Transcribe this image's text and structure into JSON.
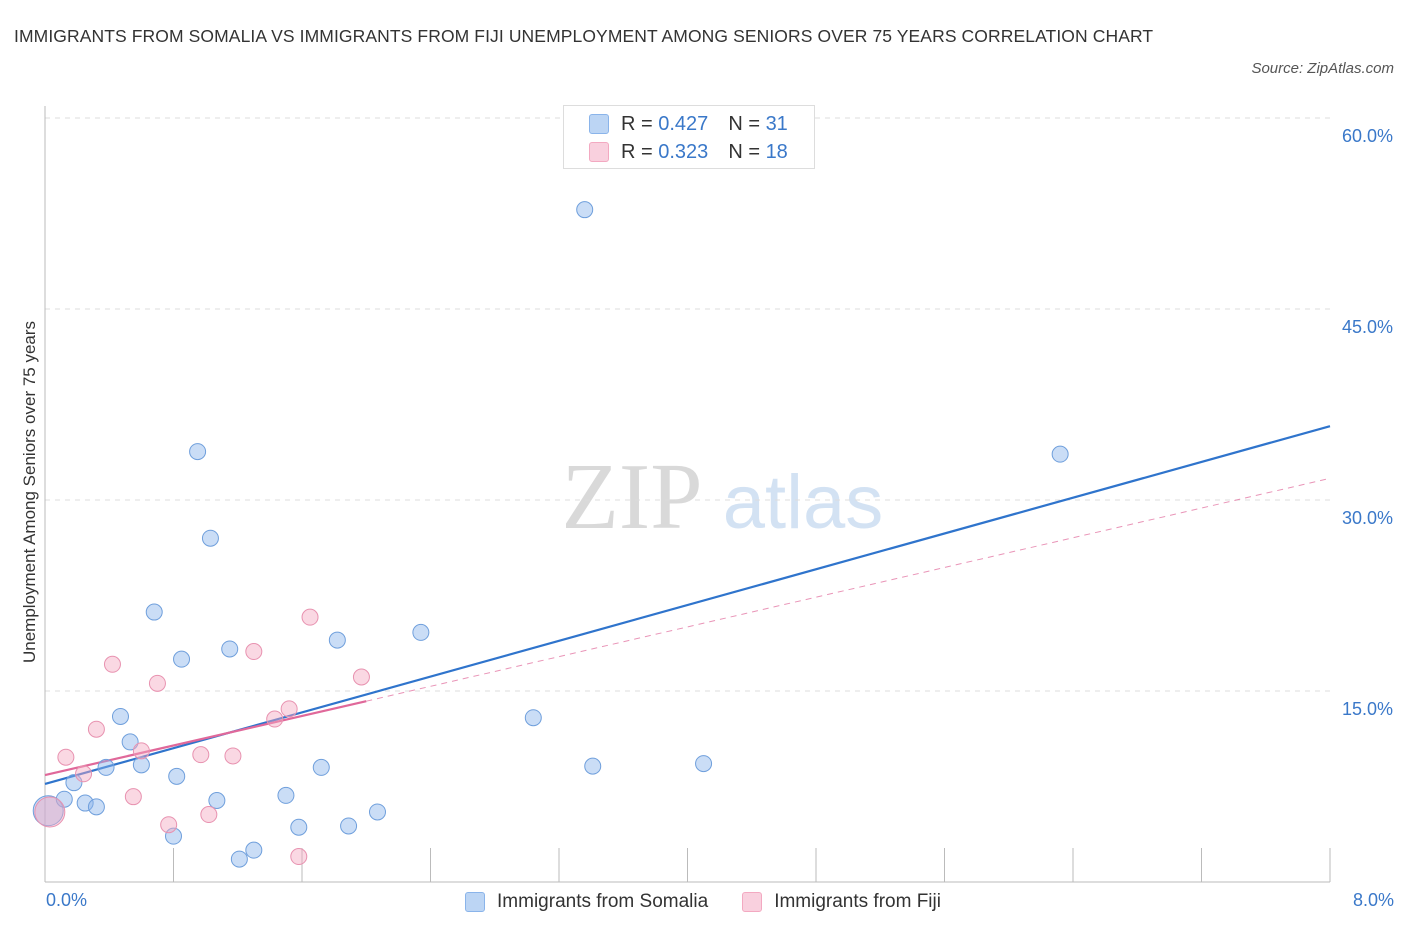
{
  "title": "IMMIGRANTS FROM SOMALIA VS IMMIGRANTS FROM FIJI UNEMPLOYMENT AMONG SENIORS OVER 75 YEARS CORRELATION CHART",
  "source": "Source: ZipAtlas.com",
  "watermark": {
    "zip": "ZIP",
    "atlas": "atlas"
  },
  "colors": {
    "somalia": "#8ab4ea",
    "fiji": "#f3a9c1",
    "somalia_line": "#2f74cc",
    "fiji_line": "#e0689a",
    "axis_label": "#3a78c9"
  },
  "legend_top": [
    {
      "r_label": "R = ",
      "r_value": "0.427",
      "n_label": "N = ",
      "n_value": "31"
    },
    {
      "r_label": "R = ",
      "r_value": "0.323",
      "n_label": "N = ",
      "n_value": "18"
    }
  ],
  "legend_bottom": [
    "Immigrants from Somalia",
    "Immigrants from Fiji"
  ],
  "x_labels": {
    "min": "0.0%",
    "max": "8.0%"
  },
  "chart_data": {
    "type": "scatter",
    "title": "IMMIGRANTS FROM SOMALIA VS IMMIGRANTS FROM FIJI UNEMPLOYMENT AMONG SENIORS OVER 75 YEARS CORRELATION CHART",
    "xlabel": "",
    "ylabel": "Unemployment Among Seniors over 75 years",
    "xlim": [
      0,
      8
    ],
    "ylim": [
      0,
      60
    ],
    "yticks": [
      15,
      30,
      45,
      60
    ],
    "ytick_labels": [
      "15.0%",
      "30.0%",
      "45.0%",
      "60.0%"
    ],
    "grid": "horizontal dashed",
    "legend_placement": "top-center and bottom",
    "series": [
      {
        "name": "Immigrants from Somalia",
        "r": 0.427,
        "n": 31,
        "points": [
          [
            0.02,
            5.6
          ],
          [
            0.12,
            6.5
          ],
          [
            0.18,
            7.8
          ],
          [
            0.25,
            6.2
          ],
          [
            0.32,
            5.9
          ],
          [
            0.38,
            9.0
          ],
          [
            0.47,
            13.0
          ],
          [
            0.53,
            11.0
          ],
          [
            0.6,
            9.2
          ],
          [
            0.68,
            21.2
          ],
          [
            0.8,
            3.6
          ],
          [
            0.82,
            8.3
          ],
          [
            0.85,
            17.5
          ],
          [
            0.95,
            33.8
          ],
          [
            1.03,
            27.0
          ],
          [
            1.07,
            6.4
          ],
          [
            1.15,
            18.3
          ],
          [
            1.21,
            1.8
          ],
          [
            1.3,
            2.5
          ],
          [
            1.5,
            6.8
          ],
          [
            1.58,
            4.3
          ],
          [
            1.72,
            9.0
          ],
          [
            1.82,
            19.0
          ],
          [
            1.89,
            4.4
          ],
          [
            2.07,
            5.5
          ],
          [
            2.34,
            19.6
          ],
          [
            3.04,
            12.9
          ],
          [
            3.36,
            52.8
          ],
          [
            3.41,
            9.1
          ],
          [
            4.1,
            9.3
          ],
          [
            6.32,
            33.6
          ]
        ],
        "trend": {
          "x": [
            0,
            8
          ],
          "y": [
            7.7,
            35.8
          ]
        }
      },
      {
        "name": "Immigrants from Fiji",
        "r": 0.323,
        "n": 18,
        "points": [
          [
            0.03,
            5.5
          ],
          [
            0.13,
            9.8
          ],
          [
            0.24,
            8.5
          ],
          [
            0.32,
            12.0
          ],
          [
            0.42,
            17.1
          ],
          [
            0.55,
            6.7
          ],
          [
            0.6,
            10.3
          ],
          [
            0.7,
            15.6
          ],
          [
            0.77,
            4.5
          ],
          [
            0.97,
            10.0
          ],
          [
            1.02,
            5.3
          ],
          [
            1.17,
            9.9
          ],
          [
            1.3,
            18.1
          ],
          [
            1.43,
            12.8
          ],
          [
            1.52,
            13.6
          ],
          [
            1.58,
            2.0
          ],
          [
            1.65,
            20.8
          ],
          [
            1.97,
            16.1
          ]
        ],
        "trend": {
          "x": [
            0,
            2.0
          ],
          "y": [
            8.4,
            14.2
          ]
        },
        "trend_extension": {
          "x": [
            2.0,
            8
          ],
          "y": [
            14.2,
            31.7
          ]
        }
      }
    ]
  }
}
